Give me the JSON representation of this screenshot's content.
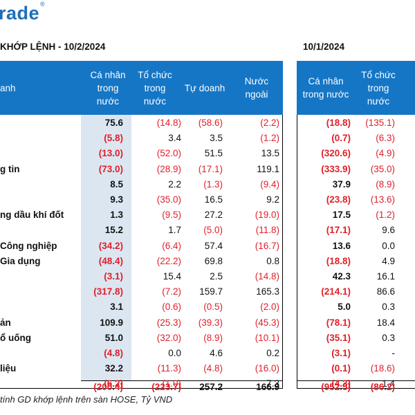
{
  "logo": {
    "text": "rade",
    "mark": "®"
  },
  "titles": {
    "left": "KHỚP LỆNH - 10/2/2024",
    "right": "10/1/2024"
  },
  "headers": {
    "left_label": "anh",
    "left": [
      "Cá nhân\ntrong\nnước",
      "Tổ chức\ntrong\nnước",
      "Tự doanh",
      "Nước\nngoài"
    ],
    "right": [
      "Cá nhân\ntrong nước",
      "Tổ chức\ntrong\nnước",
      ""
    ]
  },
  "rows": [
    {
      "label": "",
      "v": [
        "75.6",
        "(14.8)",
        "(58.6)",
        "(2.2)",
        "(18.8)",
        "(135.1)"
      ]
    },
    {
      "label": "",
      "v": [
        "(5.8)",
        "3.4",
        "3.5",
        "(1.2)",
        "(0.7)",
        "(6.3)"
      ]
    },
    {
      "label": "",
      "v": [
        "(13.0)",
        "(52.0)",
        "51.5",
        "13.5",
        "(320.6)",
        "(4.9)"
      ]
    },
    {
      "label": "g tin",
      "v": [
        "(73.0)",
        "(28.9)",
        "(17.1)",
        "119.1",
        "(333.9)",
        "(35.0)"
      ]
    },
    {
      "label": "",
      "v": [
        "8.5",
        "2.2",
        "(1.3)",
        "(9.4)",
        "37.9",
        "(8.9)"
      ]
    },
    {
      "label": "",
      "v": [
        "9.3",
        "(35.0)",
        "16.5",
        "9.2",
        "(23.8)",
        "(13.6)"
      ]
    },
    {
      "label": "ng dầu khí đốt",
      "v": [
        "1.3",
        "(9.5)",
        "27.2",
        "(19.0)",
        "17.5",
        "(1.2)"
      ]
    },
    {
      "label": "",
      "v": [
        "15.2",
        "1.7",
        "(5.0)",
        "(11.8)",
        "(17.1)",
        "9.6"
      ]
    },
    {
      "label": "Công nghiệp",
      "v": [
        "(34.2)",
        "(6.4)",
        "57.4",
        "(16.7)",
        "13.6",
        "0.0"
      ]
    },
    {
      "label": "Gia dụng",
      "v": [
        "(48.4)",
        "(22.2)",
        "69.8",
        "0.8",
        "(18.8)",
        "4.9"
      ]
    },
    {
      "label": "",
      "v": [
        "(3.1)",
        "15.4",
        "2.5",
        "(14.8)",
        "42.3",
        "16.1"
      ]
    },
    {
      "label": "",
      "v": [
        "(317.8)",
        "(7.2)",
        "159.7",
        "165.3",
        "(214.1)",
        "86.6"
      ]
    },
    {
      "label": "",
      "v": [
        "3.1",
        "(0.6)",
        "(0.5)",
        "(2.0)",
        "5.0",
        "0.3"
      ]
    },
    {
      "label": "ản",
      "v": [
        "109.9",
        "(25.3)",
        "(39.3)",
        "(45.3)",
        "(78.1)",
        "18.4"
      ]
    },
    {
      "label": "ổ uống",
      "v": [
        "51.0",
        "(32.0)",
        "(8.9)",
        "(10.1)",
        "(35.1)",
        "0.3"
      ]
    },
    {
      "label": "",
      "v": [
        "(4.8)",
        "0.0",
        "4.6",
        "0.2",
        "(3.1)",
        "-"
      ]
    },
    {
      "label": "liệu",
      "v": [
        "32.2",
        "(11.3)",
        "(4.8)",
        "(16.0)",
        "(0.1)",
        "(18.6)"
      ]
    },
    {
      "label": "",
      "v": [
        "(6.2)",
        "(1.0)",
        "-",
        "7.3",
        "(4.3)",
        "1.4"
      ]
    }
  ],
  "total": {
    "label": "",
    "v": [
      "(200.4)",
      "(223.7)",
      "257.2",
      "166.9",
      "(952.5)",
      "(86.2)"
    ]
  },
  "note": "tính GD khớp lệnh trên sàn HOSE, Tỷ VND",
  "colors": {
    "header_bg": "#1576c6",
    "highlight": "#dce6f1",
    "negative": "#e0202a",
    "logo": "#1f6fb8"
  }
}
